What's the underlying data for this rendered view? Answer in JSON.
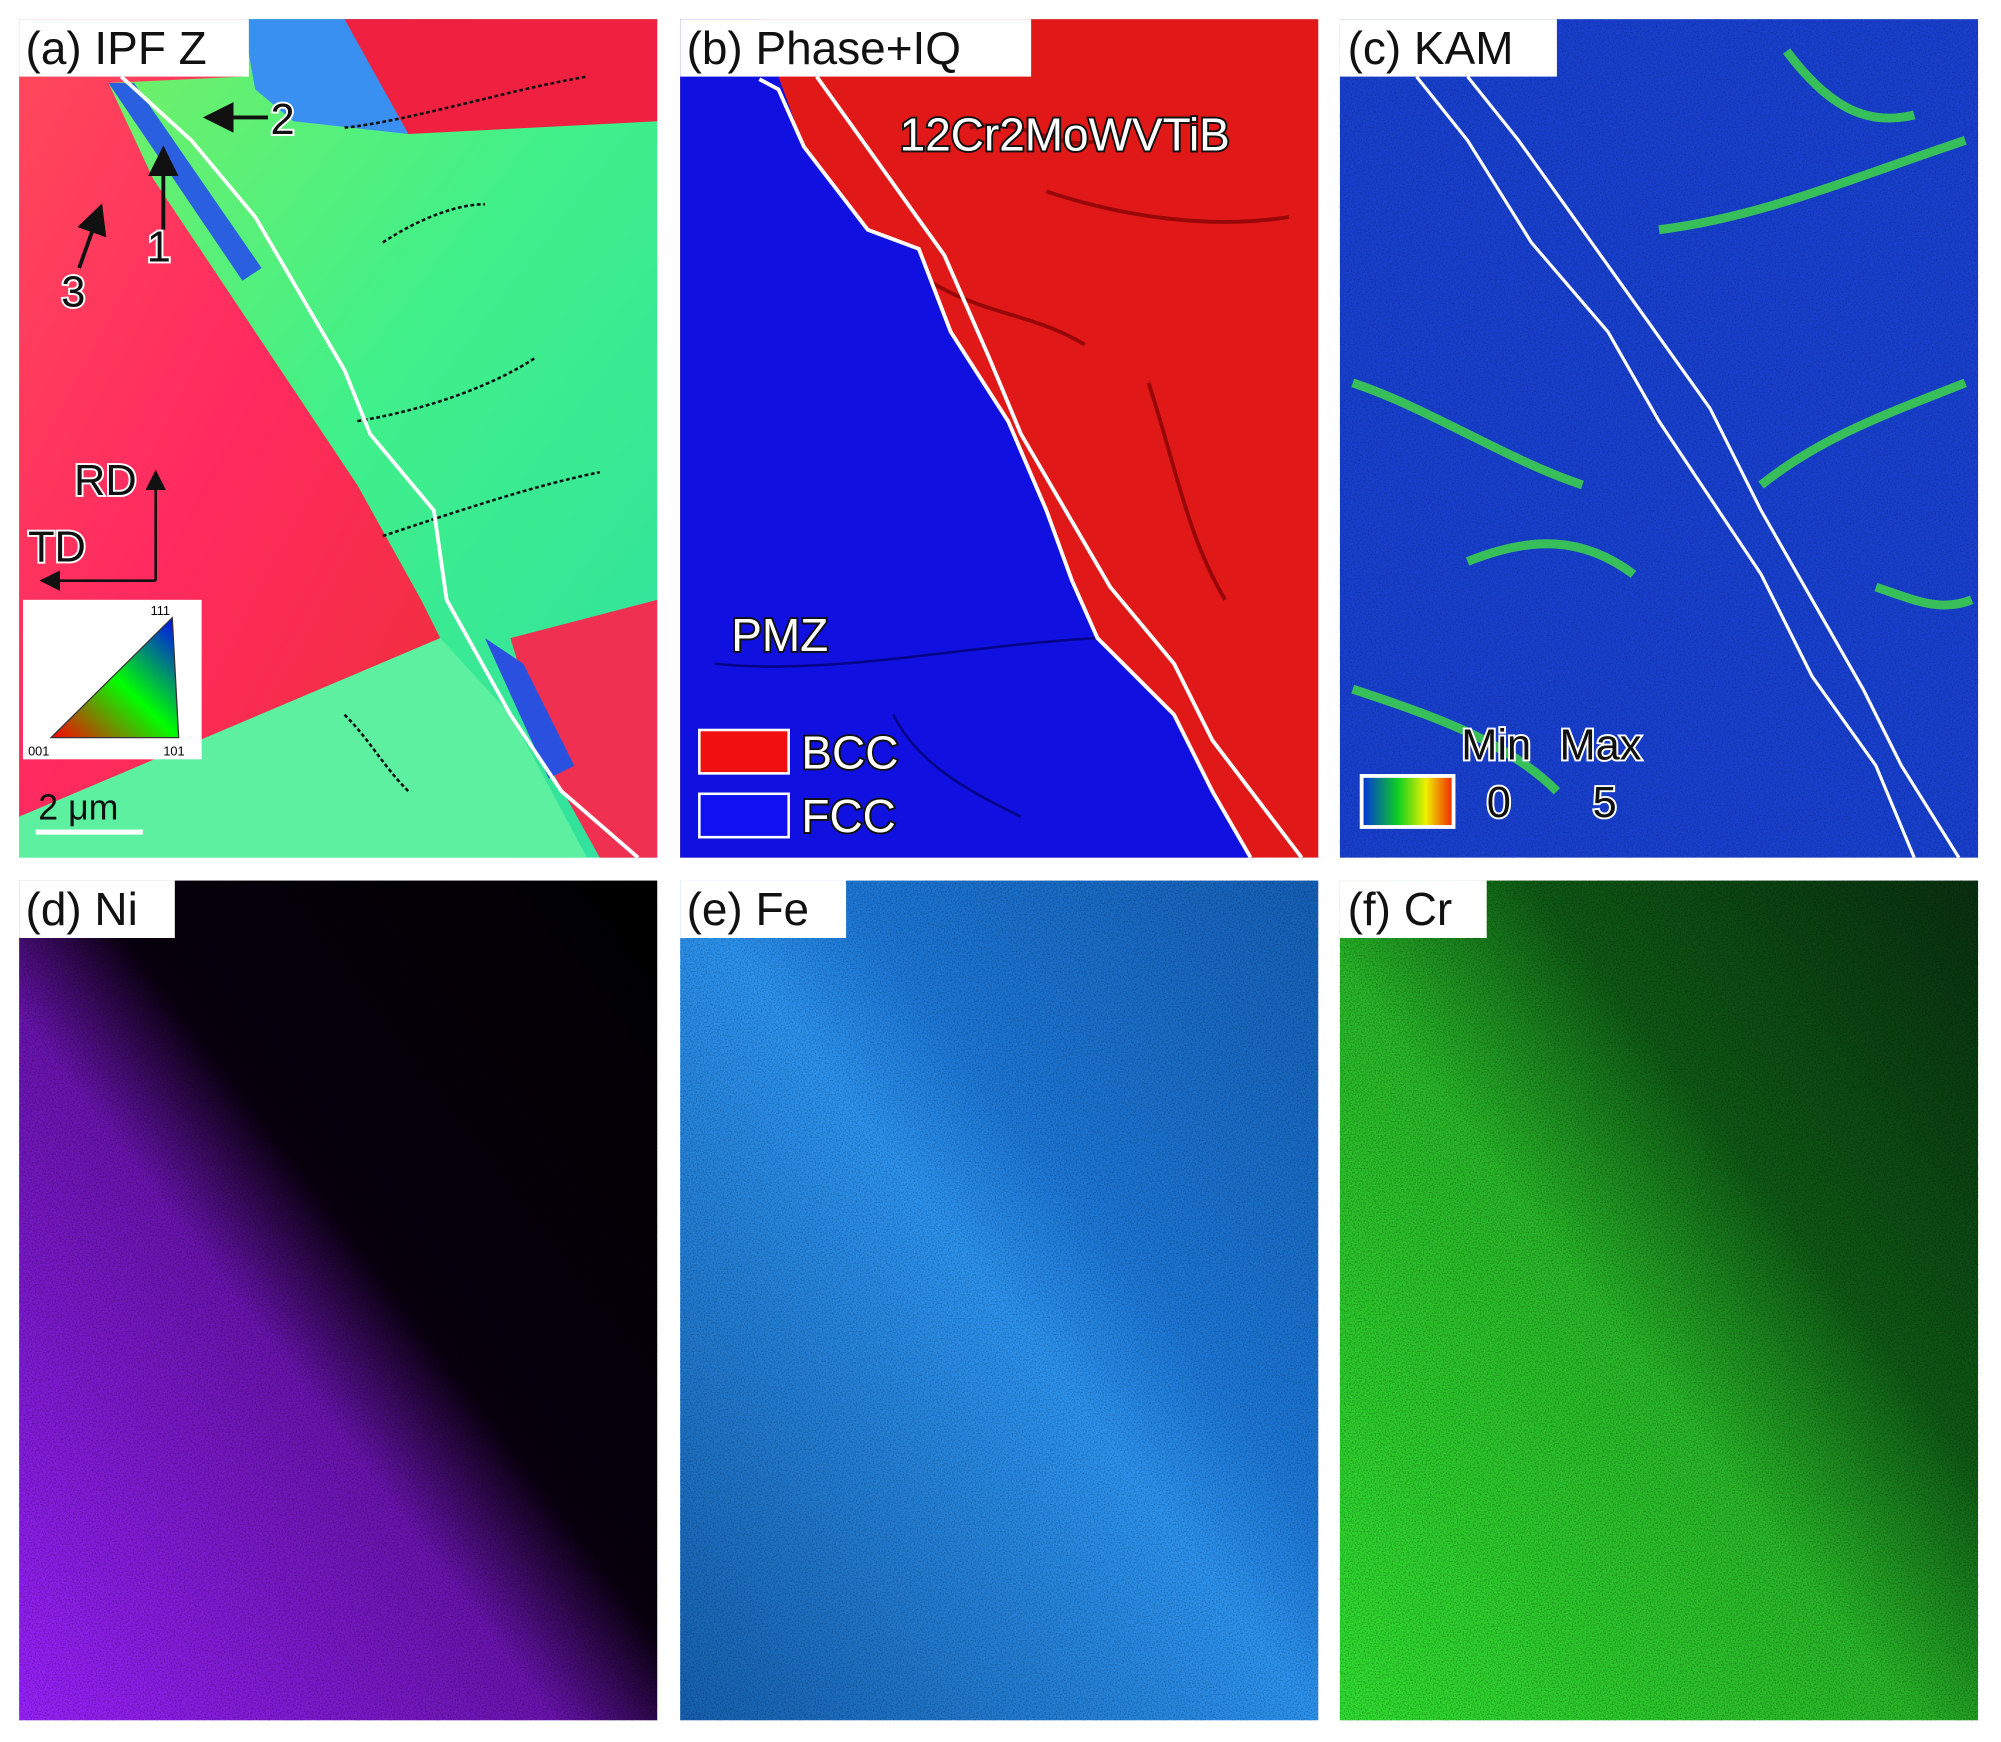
{
  "panels": [
    {
      "label": "(a) IPF Z",
      "annotations": [
        "1",
        "2",
        "3"
      ],
      "axes": [
        "RD",
        "TD"
      ],
      "legend": [
        "111",
        "001",
        "101"
      ],
      "scale_bar": "2 μm"
    },
    {
      "label": "(b) Phase+IQ",
      "regions": [
        "12Cr2MoWVTiB",
        "PMZ"
      ],
      "legend": [
        "BCC",
        "FCC"
      ]
    },
    {
      "label": "(c) KAM",
      "legend": {
        "min": "Min",
        "max": "Max",
        "min_value": 0,
        "max_value": 5
      }
    },
    {
      "label": "(d) Ni"
    },
    {
      "label": "(e) Fe"
    },
    {
      "label": "(f) Cr"
    }
  ]
}
